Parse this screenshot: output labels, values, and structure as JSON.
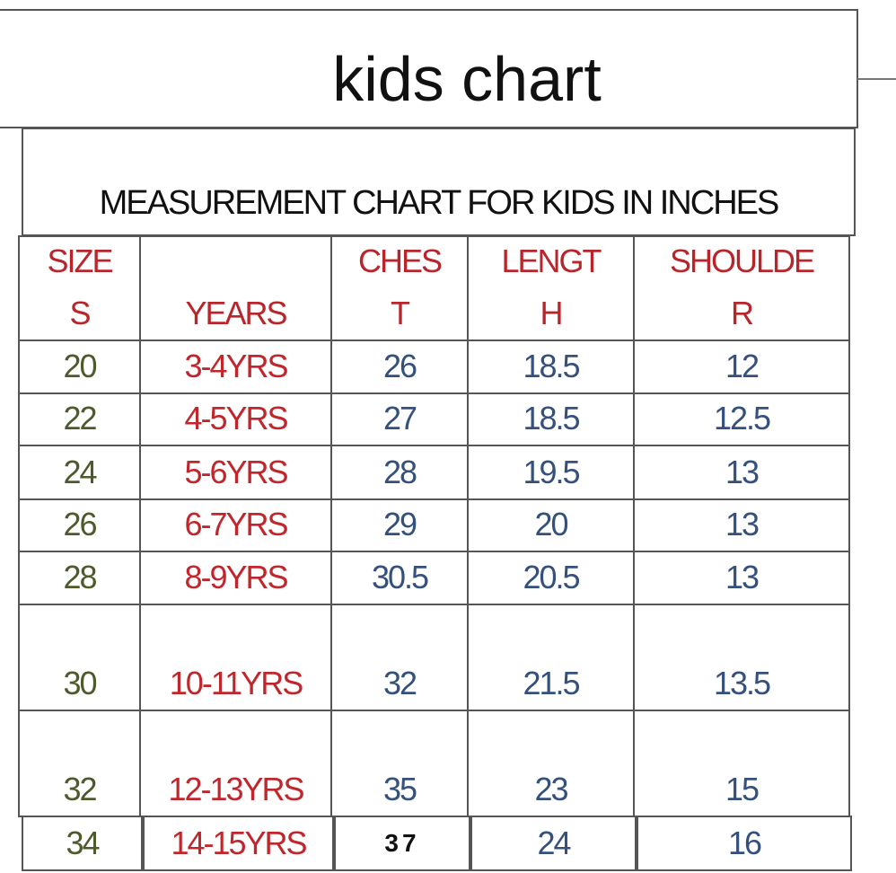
{
  "header": {
    "title": "kids chart",
    "subtitle": "MEASUREMENT CHART FOR KIDS IN INCHES"
  },
  "table": {
    "columns": [
      "SIZES",
      "YEARS",
      "CHEST",
      "LENGTH",
      "SHOULDER"
    ],
    "rows": [
      [
        20,
        "3-4YRS",
        26,
        18.5,
        12
      ],
      [
        22,
        "4-5YRS",
        27,
        18.5,
        12.5
      ],
      [
        24,
        "5-6YRS",
        28,
        19.5,
        13
      ],
      [
        26,
        "6-7YRS",
        29,
        20,
        13
      ],
      [
        28,
        "8-9YRS",
        30.5,
        20.5,
        13
      ],
      [
        30,
        "10-11YRS",
        32,
        21.5,
        13.5
      ],
      [
        32,
        "12-13YRS",
        35,
        23,
        15
      ],
      [
        34,
        "14-15YRS",
        37,
        24,
        16
      ]
    ]
  }
}
